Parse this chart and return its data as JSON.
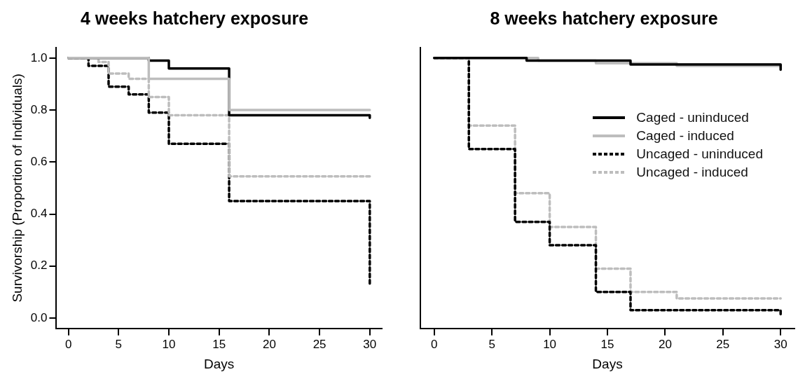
{
  "chart_data": [
    {
      "type": "step",
      "title": "4 weeks hatchery exposure",
      "xlabel": "Days",
      "ylabel": "Survivorship (Proportion of Individuals)",
      "xlim": [
        -1.2,
        31.2
      ],
      "ylim": [
        -0.04,
        1.04
      ],
      "xticks": [
        0,
        5,
        10,
        15,
        20,
        25,
        30
      ],
      "yticks": [
        {
          "value": 0,
          "label": "0.0"
        },
        {
          "value": 0.2,
          "label": "0.2"
        },
        {
          "value": 0.4,
          "label": "0.4"
        },
        {
          "value": 0.6,
          "label": "0.6"
        },
        {
          "value": 0.8,
          "label": "0.8"
        },
        {
          "value": 1,
          "label": "1.0"
        }
      ],
      "legend": false,
      "series": [
        {
          "color": "#bdbdbd",
          "line_style": "solid",
          "x": [
            0,
            8,
            16,
            30
          ],
          "values": [
            1,
            0.92,
            0.8,
            0.8
          ]
        },
        {
          "color": "#000000",
          "line_style": "solid",
          "x": [
            0,
            8,
            10,
            16,
            30
          ],
          "values": [
            1,
            0.99,
            0.96,
            0.78,
            0.77
          ]
        },
        {
          "color": "#bdbdbd",
          "line_style": "dashed",
          "x": [
            0,
            3,
            4,
            6,
            8,
            10,
            16,
            30
          ],
          "values": [
            1,
            0.985,
            0.94,
            0.92,
            0.85,
            0.78,
            0.545,
            0.545
          ]
        },
        {
          "color": "#000000",
          "line_style": "dashed",
          "x": [
            0,
            2,
            4,
            6,
            8,
            10,
            16,
            30
          ],
          "values": [
            1,
            0.97,
            0.89,
            0.86,
            0.79,
            0.67,
            0.45,
            0.13
          ]
        }
      ]
    },
    {
      "type": "step",
      "title": "8 weeks hatchery exposure",
      "xlabel": "Days",
      "xlim": [
        -1.2,
        31.2
      ],
      "ylim": [
        -0.04,
        1.04
      ],
      "xticks": [
        0,
        5,
        10,
        15,
        20,
        25,
        30
      ],
      "yticks": [
        {
          "value": 0,
          "label": null
        },
        {
          "value": 0.2,
          "label": null
        },
        {
          "value": 0.4,
          "label": null
        },
        {
          "value": 0.6,
          "label": null
        },
        {
          "value": 0.8,
          "label": null
        },
        {
          "value": 1,
          "label": null
        }
      ],
      "tick_labels": "x",
      "legend": "top right",
      "series": [
        {
          "name": "Caged - uninduced",
          "color": "#000000",
          "line_style": "solid",
          "x": [
            0,
            8,
            17,
            30
          ],
          "values": [
            1,
            0.99,
            0.975,
            0.955
          ]
        },
        {
          "name": "Caged - induced",
          "color": "#bdbdbd",
          "line_style": "solid",
          "x": [
            0,
            9,
            14,
            21,
            30
          ],
          "values": [
            1,
            0.99,
            0.98,
            0.97,
            0.97
          ]
        },
        {
          "name": "Uncaged - uninduced",
          "color": "#000000",
          "line_style": "dashed",
          "x": [
            0,
            3,
            7,
            10,
            14,
            17,
            30
          ],
          "values": [
            1,
            0.65,
            0.37,
            0.28,
            0.1,
            0.03,
            0.015
          ]
        },
        {
          "name": "Uncaged - induced",
          "color": "#bdbdbd",
          "line_style": "dashed",
          "x": [
            0,
            3,
            7,
            10,
            14,
            17,
            21,
            30
          ],
          "values": [
            1,
            0.74,
            0.48,
            0.35,
            0.19,
            0.1,
            0.075,
            0.075
          ]
        }
      ]
    }
  ]
}
